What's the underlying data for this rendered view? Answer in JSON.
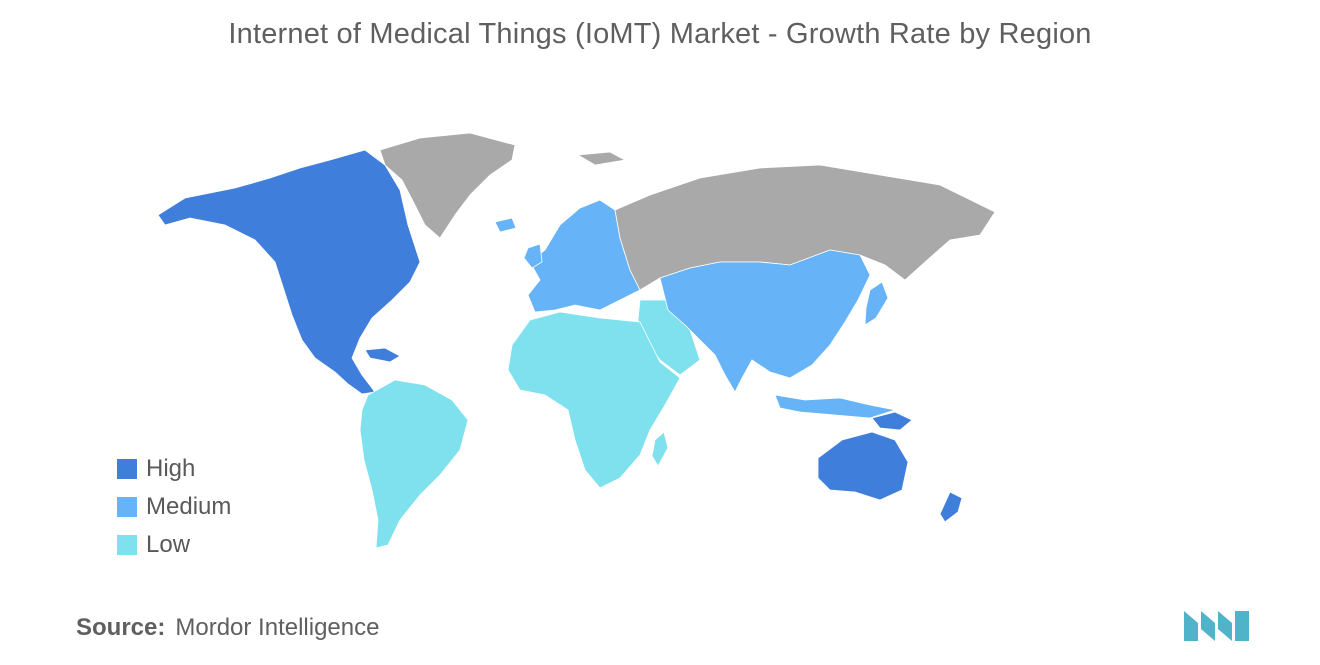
{
  "title": "Internet of Medical Things (IoMT) Market - Growth Rate by Region",
  "legend": [
    {
      "label": "High",
      "color": "#3f7fdb"
    },
    {
      "label": "Medium",
      "color": "#67b3f7"
    },
    {
      "label": "Low",
      "color": "#7fe0ee"
    }
  ],
  "no_data_color": "#a9a9a9",
  "regions": {
    "north_america": "High",
    "oceania": "High",
    "europe": "Medium",
    "asia_pacific": "Medium",
    "south_america": "Low",
    "africa": "Low",
    "middle_east": "Low",
    "greenland": "No data",
    "russia": "No data"
  },
  "source": {
    "label": "Source:",
    "value": "Mordor Intelligence"
  },
  "logo": {
    "name": "mordor-intelligence-logo",
    "color": "#4fb3c9"
  }
}
